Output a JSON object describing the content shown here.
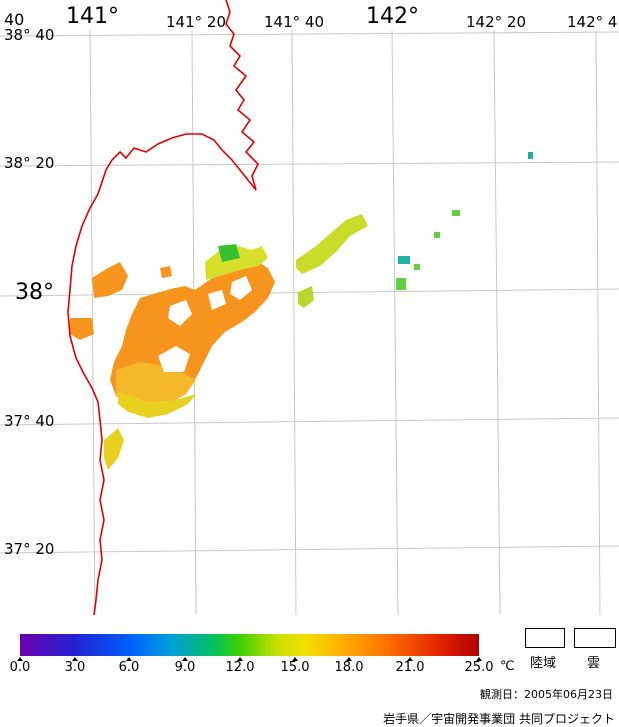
{
  "map": {
    "longitude_labels": [
      "141°",
      "141° 20",
      "141° 40",
      "142°",
      "142° 20",
      "142° 4"
    ],
    "latitude_labels": [
      "38° 40",
      "38° 20",
      "38°",
      "37° 40",
      "37° 20"
    ],
    "corner_label": "40",
    "coastline_color": "#e00000",
    "grid_color": "#c8c8c8"
  },
  "colorbar": {
    "ticks": [
      "0.0",
      "3.0",
      "6.0",
      "9.0",
      "12.0",
      "15.0",
      "18.0",
      "21.0",
      "25.0"
    ],
    "unit": "℃"
  },
  "legend": {
    "land_label": "陸域",
    "cloud_label": "雲"
  },
  "observation_date": "観測日：2005年06月23日",
  "credit": "岩手県／宇宙開発事業団 共同プロジェクト"
}
